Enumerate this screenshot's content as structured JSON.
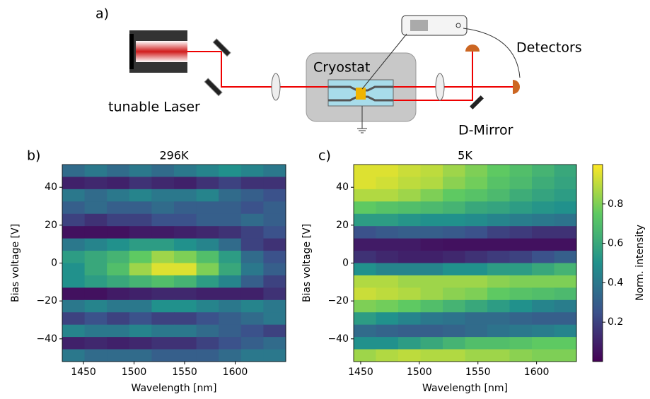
{
  "diagram": {
    "panel_label": "a)",
    "laser": "tunable Laser",
    "cryostat": "Cryostat",
    "detectors": "Detectors",
    "mirror": "D-Mirror"
  },
  "colorbar": {
    "label": "Norm. intensity",
    "clim": [
      0,
      1
    ],
    "ticks": [
      0.2,
      0.4,
      0.6,
      0.8
    ]
  },
  "chart_data": [
    {
      "type": "heatmap",
      "panel_label": "b)",
      "title": "296K",
      "x_label": "Wavelength [nm]",
      "y_label": "Bias voltage [V]",
      "xlim": [
        1429,
        1650
      ],
      "ylim": [
        -52,
        52
      ],
      "xticks": [
        1450,
        1500,
        1550,
        1600
      ],
      "yticks": [
        {
          "value": -40,
          "label": "−40"
        },
        {
          "value": -20,
          "label": "−20"
        },
        0,
        20,
        40
      ],
      "z": [
        [
          0.35,
          0.4,
          0.35,
          0.4,
          0.35,
          0.4,
          0.45,
          0.5,
          0.45,
          0.4
        ],
        [
          0.1,
          0.12,
          0.1,
          0.15,
          0.12,
          0.1,
          0.15,
          0.2,
          0.15,
          0.15
        ],
        [
          0.4,
          0.35,
          0.4,
          0.45,
          0.4,
          0.4,
          0.45,
          0.35,
          0.3,
          0.25
        ],
        [
          0.3,
          0.35,
          0.3,
          0.3,
          0.35,
          0.3,
          0.3,
          0.3,
          0.25,
          0.3
        ],
        [
          0.2,
          0.15,
          0.2,
          0.2,
          0.25,
          0.25,
          0.3,
          0.3,
          0.35,
          0.3
        ],
        [
          0.05,
          0.05,
          0.05,
          0.08,
          0.08,
          0.1,
          0.12,
          0.15,
          0.2,
          0.25
        ],
        [
          0.4,
          0.45,
          0.5,
          0.55,
          0.55,
          0.5,
          0.45,
          0.35,
          0.2,
          0.15
        ],
        [
          0.55,
          0.6,
          0.65,
          0.75,
          0.85,
          0.8,
          0.7,
          0.55,
          0.35,
          0.25
        ],
        [
          0.5,
          0.6,
          0.7,
          0.85,
          0.95,
          0.95,
          0.8,
          0.6,
          0.4,
          0.3
        ],
        [
          0.5,
          0.55,
          0.6,
          0.65,
          0.7,
          0.65,
          0.55,
          0.45,
          0.3,
          0.2
        ],
        [
          0.05,
          0.05,
          0.08,
          0.1,
          0.12,
          0.12,
          0.1,
          0.1,
          0.1,
          0.15
        ],
        [
          0.4,
          0.45,
          0.4,
          0.4,
          0.5,
          0.5,
          0.45,
          0.4,
          0.45,
          0.4
        ],
        [
          0.2,
          0.25,
          0.2,
          0.25,
          0.2,
          0.2,
          0.25,
          0.3,
          0.35,
          0.4
        ],
        [
          0.45,
          0.4,
          0.4,
          0.45,
          0.4,
          0.4,
          0.35,
          0.3,
          0.25,
          0.2
        ],
        [
          0.1,
          0.12,
          0.1,
          0.12,
          0.15,
          0.15,
          0.2,
          0.25,
          0.3,
          0.35
        ],
        [
          0.4,
          0.35,
          0.35,
          0.35,
          0.3,
          0.3,
          0.3,
          0.35,
          0.4,
          0.4
        ]
      ]
    },
    {
      "type": "heatmap",
      "panel_label": "c)",
      "title": "5K",
      "x_label": "Wavelength [nm]",
      "y_label": "Bias voltage [V]",
      "xlim": [
        1444,
        1634
      ],
      "ylim": [
        -52,
        52
      ],
      "xticks": [
        1450,
        1500,
        1550,
        1600
      ],
      "yticks": [
        {
          "value": -40,
          "label": "−40"
        },
        {
          "value": -20,
          "label": "−20"
        },
        0,
        20,
        40
      ],
      "z": [
        [
          0.95,
          0.95,
          0.92,
          0.9,
          0.85,
          0.8,
          0.75,
          0.7,
          0.65,
          0.6
        ],
        [
          0.95,
          0.93,
          0.9,
          0.88,
          0.82,
          0.78,
          0.72,
          0.68,
          0.62,
          0.58
        ],
        [
          0.88,
          0.88,
          0.85,
          0.8,
          0.75,
          0.72,
          0.68,
          0.62,
          0.58,
          0.55
        ],
        [
          0.75,
          0.72,
          0.7,
          0.68,
          0.65,
          0.6,
          0.58,
          0.55,
          0.52,
          0.5
        ],
        [
          0.55,
          0.55,
          0.52,
          0.5,
          0.5,
          0.48,
          0.45,
          0.42,
          0.4,
          0.38
        ],
        [
          0.25,
          0.28,
          0.3,
          0.3,
          0.28,
          0.25,
          0.2,
          0.18,
          0.15,
          0.15
        ],
        [
          0.08,
          0.08,
          0.08,
          0.06,
          0.05,
          0.05,
          0.05,
          0.05,
          0.05,
          0.05
        ],
        [
          0.15,
          0.12,
          0.1,
          0.1,
          0.12,
          0.15,
          0.18,
          0.2,
          0.25,
          0.3
        ],
        [
          0.5,
          0.45,
          0.45,
          0.45,
          0.5,
          0.5,
          0.55,
          0.55,
          0.6,
          0.65
        ],
        [
          0.88,
          0.88,
          0.85,
          0.85,
          0.85,
          0.85,
          0.82,
          0.8,
          0.8,
          0.8
        ],
        [
          0.92,
          0.9,
          0.88,
          0.85,
          0.82,
          0.8,
          0.75,
          0.72,
          0.7,
          0.68
        ],
        [
          0.8,
          0.78,
          0.75,
          0.7,
          0.65,
          0.6,
          0.55,
          0.5,
          0.45,
          0.42
        ],
        [
          0.55,
          0.5,
          0.45,
          0.4,
          0.38,
          0.35,
          0.35,
          0.32,
          0.3,
          0.3
        ],
        [
          0.35,
          0.32,
          0.3,
          0.3,
          0.32,
          0.35,
          0.38,
          0.4,
          0.42,
          0.45
        ],
        [
          0.5,
          0.5,
          0.55,
          0.6,
          0.65,
          0.7,
          0.7,
          0.72,
          0.75,
          0.75
        ],
        [
          0.85,
          0.88,
          0.9,
          0.88,
          0.88,
          0.85,
          0.85,
          0.82,
          0.8,
          0.8
        ]
      ]
    }
  ]
}
